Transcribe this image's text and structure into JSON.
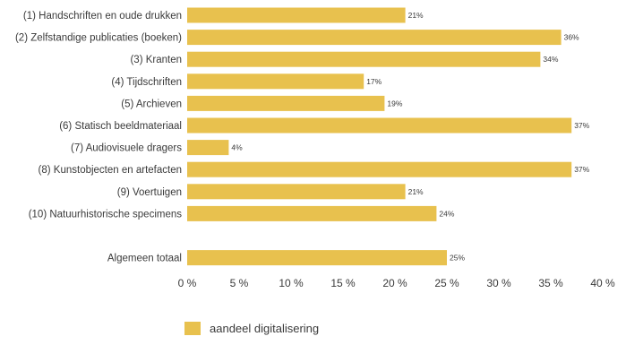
{
  "chart_data": {
    "type": "bar",
    "orientation": "horizontal",
    "categories": [
      "(1) Handschriften en oude drukken",
      "(2) Zelfstandige publicaties (boeken)",
      "(3) Kranten",
      "(4) Tijdschriften",
      "(5) Archieven",
      "(6) Statisch beeldmateriaal",
      "(7) Audiovisuele dragers",
      "(8) Kunstobjecten en artefacten",
      "(9) Voertuigen",
      "(10) Natuurhistorische specimens",
      "",
      "Algemeen totaal"
    ],
    "values": [
      21,
      36,
      34,
      17,
      19,
      37,
      4,
      37,
      21,
      24,
      null,
      25
    ],
    "data_labels": [
      "21%",
      "36%",
      "34%",
      "17%",
      "19%",
      "37%",
      "4%",
      "37%",
      "21%",
      "24%",
      "",
      "25%"
    ],
    "xlim": [
      0,
      40
    ],
    "x_ticks": [
      0,
      5,
      10,
      15,
      20,
      25,
      30,
      35,
      40
    ],
    "x_tick_labels": [
      "0 %",
      "5 %",
      "10 %",
      "15 %",
      "20 %",
      "25 %",
      "30 %",
      "35 %",
      "40 %"
    ],
    "series": [
      {
        "name": "aandeel digitalisering",
        "values": [
          21,
          36,
          34,
          17,
          19,
          37,
          4,
          37,
          21,
          24,
          null,
          25
        ]
      }
    ],
    "legend": {
      "label": "aandeel digitalisering",
      "placement": "bottom-left"
    },
    "grid": false,
    "colors": {
      "bar": "#E8C14E",
      "text": "#3a3a3a"
    }
  }
}
